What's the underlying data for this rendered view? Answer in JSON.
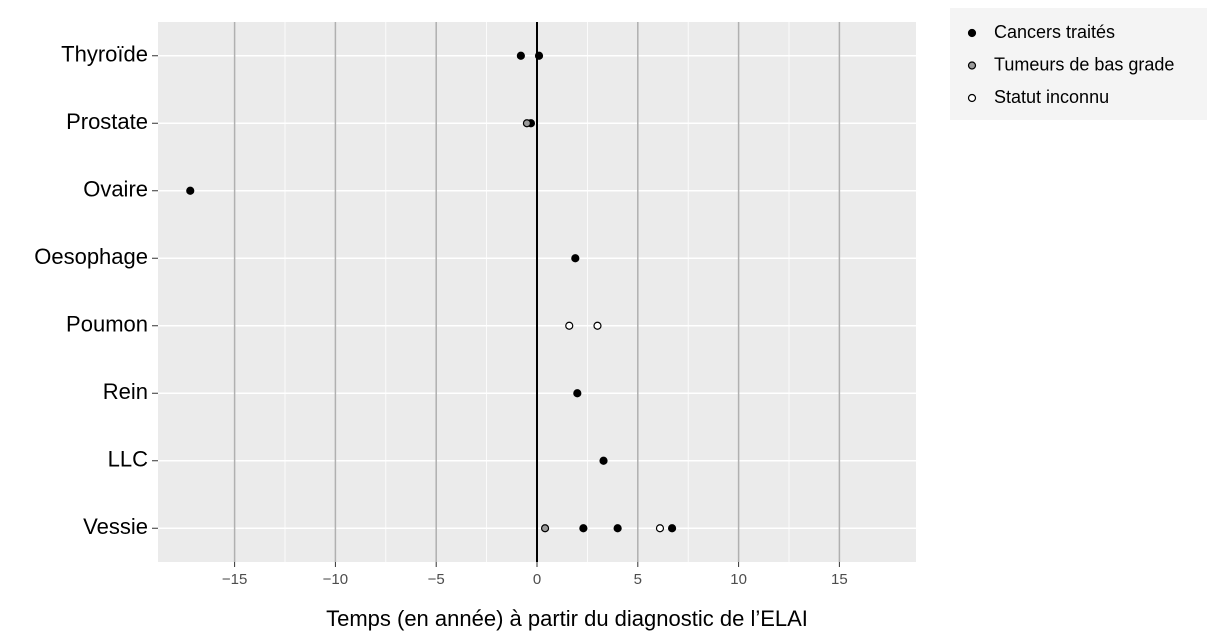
{
  "chart_data": {
    "type": "scatter",
    "xlabel": "Temps (en année) à partir du diagnostic de l’ELAI",
    "categories": [
      "Thyroïde",
      "Prostate",
      "Ovaire",
      "Oesophage",
      "Poumon",
      "Rein",
      "LLC",
      "Vessie"
    ],
    "xlim": [
      -18.8,
      18.8
    ],
    "xticks": [
      {
        "value": -15,
        "label": "−15"
      },
      {
        "value": -10,
        "label": "−10"
      },
      {
        "value": -5,
        "label": "−5"
      },
      0,
      5,
      10,
      15
    ],
    "series": [
      {
        "name": "Cancers traités",
        "color": "#000000",
        "x": [
          -0.8,
          0.1,
          -0.3,
          -17.2,
          1.9,
          2.0,
          3.3,
          2.3,
          4.0,
          6.7
        ],
        "y": [
          "Thyroïde",
          "Thyroïde",
          "Prostate",
          "Ovaire",
          "Oesophage",
          "Rein",
          "LLC",
          "Vessie",
          "Vessie",
          "Vessie"
        ]
      },
      {
        "name": "Tumeurs de bas grade",
        "color": "#9a9a9a",
        "x": [
          -0.5,
          0.4
        ],
        "y": [
          "Prostate",
          "Vessie"
        ]
      },
      {
        "name": "Statut inconnu",
        "color": "#ffffff",
        "x": [
          1.6,
          3.0,
          6.1
        ],
        "y": [
          "Poumon",
          "Poumon",
          "Vessie"
        ]
      }
    ]
  }
}
